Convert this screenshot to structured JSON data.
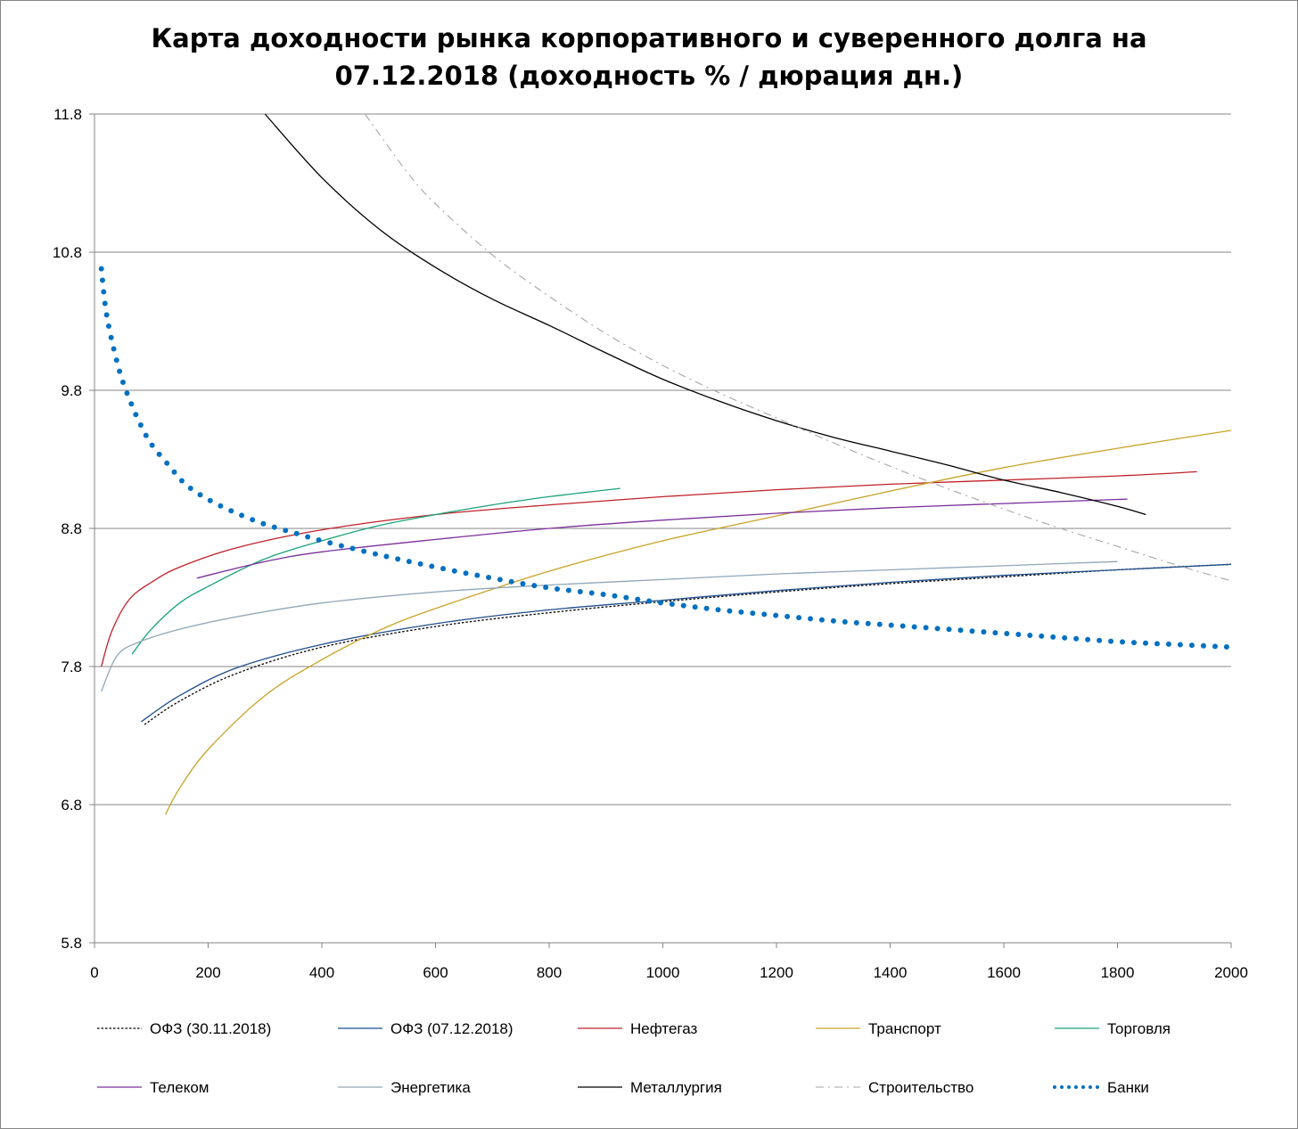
{
  "chart_data": {
    "type": "line",
    "title_lines": [
      "Карта доходности рынка корпоративного и суверенного долга на",
      "07.12.2018 (доходность % / дюрация дн.)"
    ],
    "xlabel": "",
    "ylabel": "",
    "xlim": [
      0,
      2000
    ],
    "ylim": [
      5.8,
      11.8
    ],
    "x_ticks": [
      "0",
      "200",
      "400",
      "600",
      "800",
      "1000",
      "1200",
      "1400",
      "1600",
      "1800",
      "2000"
    ],
    "y_ticks": [
      "5.8",
      "6.8",
      "7.8",
      "8.8",
      "9.8",
      "10.8",
      "11.8"
    ],
    "grid": "horizontal",
    "legend_position": "bottom",
    "series": [
      {
        "name": "ОФЗ (30.11.2018)",
        "color": "#000000",
        "style": "dotted",
        "x": [
          88,
          150,
          250,
          400,
          600,
          800,
          1000,
          1200,
          1400,
          1600,
          1800,
          2000
        ],
        "y": [
          7.38,
          7.55,
          7.75,
          7.94,
          8.09,
          8.19,
          8.27,
          8.34,
          8.4,
          8.45,
          8.5,
          8.54
        ]
      },
      {
        "name": "ОФЗ (07.12.2018)",
        "color": "#1f4e8a",
        "style": "solid",
        "x": [
          82,
          150,
          250,
          400,
          600,
          800,
          1000,
          1200,
          1400,
          1600,
          1800,
          2000
        ],
        "y": [
          7.4,
          7.59,
          7.79,
          7.96,
          8.11,
          8.21,
          8.28,
          8.35,
          8.41,
          8.46,
          8.5,
          8.54
        ]
      },
      {
        "name": "Нефтегаз",
        "color": "#c0202a",
        "style": "solid",
        "x": [
          12,
          30,
          60,
          100,
          150,
          250,
          400,
          600,
          800,
          1000,
          1200,
          1400,
          1600,
          1800,
          1940
        ],
        "y": [
          7.8,
          8.05,
          8.28,
          8.41,
          8.52,
          8.66,
          8.79,
          8.9,
          8.97,
          9.03,
          9.08,
          9.12,
          9.15,
          9.18,
          9.21
        ]
      },
      {
        "name": "Транспорт",
        "color": "#c9a227",
        "style": "solid",
        "x": [
          125,
          150,
          200,
          300,
          400,
          500,
          600,
          800,
          1000,
          1200,
          1400,
          1600,
          1800,
          2000
        ],
        "y": [
          6.73,
          6.92,
          7.2,
          7.59,
          7.85,
          8.06,
          8.22,
          8.49,
          8.71,
          8.89,
          9.07,
          9.24,
          9.38,
          9.51
        ]
      },
      {
        "name": "Торговля",
        "color": "#1aa27a",
        "style": "solid",
        "x": [
          66,
          100,
          150,
          200,
          300,
          400,
          500,
          600,
          700,
          800,
          925
        ],
        "y": [
          7.89,
          8.07,
          8.26,
          8.38,
          8.58,
          8.71,
          8.82,
          8.9,
          8.97,
          9.03,
          9.09
        ]
      },
      {
        "name": "Телеком",
        "color": "#7b2f9a",
        "style": "solid",
        "x": [
          180,
          300,
          400,
          600,
          800,
          1000,
          1200,
          1400,
          1600,
          1800,
          1806
        ],
        "y": [
          8.44,
          8.56,
          8.63,
          8.72,
          8.8,
          8.86,
          8.91,
          8.95,
          8.98,
          9.01,
          9.01
        ]
      },
      {
        "name": "Энергетика",
        "color": "#8fa7b8",
        "style": "solid",
        "x": [
          12,
          40,
          80,
          150,
          250,
          400,
          600,
          800,
          1000,
          1200,
          1400,
          1600,
          1800
        ],
        "y": [
          7.62,
          7.88,
          7.98,
          8.07,
          8.16,
          8.26,
          8.34,
          8.39,
          8.43,
          8.47,
          8.5,
          8.53,
          8.56
        ]
      },
      {
        "name": "Металлургия",
        "color": "#000000",
        "style": "solid",
        "x": [
          300,
          400,
          500,
          600,
          700,
          800,
          900,
          1000,
          1100,
          1200,
          1300,
          1400,
          1500,
          1600,
          1700,
          1800,
          1850
        ],
        "y": [
          11.8,
          11.34,
          10.97,
          10.69,
          10.46,
          10.27,
          10.07,
          9.88,
          9.72,
          9.58,
          9.46,
          9.36,
          9.26,
          9.15,
          9.06,
          8.96,
          8.9
        ]
      },
      {
        "name": "Строительство",
        "color": "#a6a6a6",
        "style": "dashdot",
        "x": [
          476,
          550,
          600,
          700,
          800,
          900,
          1000,
          1100,
          1200,
          1300,
          1400,
          1500,
          1600,
          1700,
          1800,
          1900,
          2000
        ],
        "y": [
          11.8,
          11.38,
          11.15,
          10.78,
          10.48,
          10.21,
          9.98,
          9.78,
          9.6,
          9.42,
          9.25,
          9.09,
          8.94,
          8.8,
          8.67,
          8.54,
          8.42
        ]
      },
      {
        "name": "Банки",
        "color": "#0070c0",
        "style": "bigdots",
        "x": [
          12,
          20,
          30,
          40,
          50,
          65,
          80,
          100,
          130,
          160,
          200,
          250,
          300,
          350,
          400,
          500,
          600,
          700,
          800,
          900,
          1000,
          1100,
          1200,
          1300,
          1400,
          1500,
          1600,
          1700,
          1800,
          1900,
          2000
        ],
        "y": [
          10.68,
          10.38,
          10.17,
          10.0,
          9.86,
          9.7,
          9.56,
          9.41,
          9.26,
          9.12,
          9.01,
          8.91,
          8.83,
          8.77,
          8.71,
          8.61,
          8.52,
          8.44,
          8.37,
          8.32,
          8.26,
          8.21,
          8.17,
          8.13,
          8.1,
          8.07,
          8.04,
          8.01,
          7.98,
          7.96,
          7.94
        ]
      }
    ]
  }
}
